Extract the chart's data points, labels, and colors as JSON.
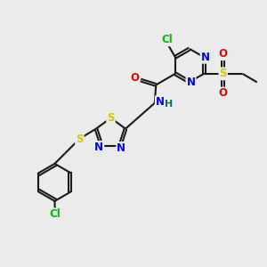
{
  "background_color": "#ebebeb",
  "bond_color": "#1a1a1a",
  "atom_colors": {
    "C": "#000000",
    "N": "#0000ee",
    "O": "#ee0000",
    "S": "#cccc00",
    "Cl": "#00bb00",
    "H": "#007070"
  },
  "figsize": [
    3.0,
    3.0
  ],
  "dpi": 100
}
